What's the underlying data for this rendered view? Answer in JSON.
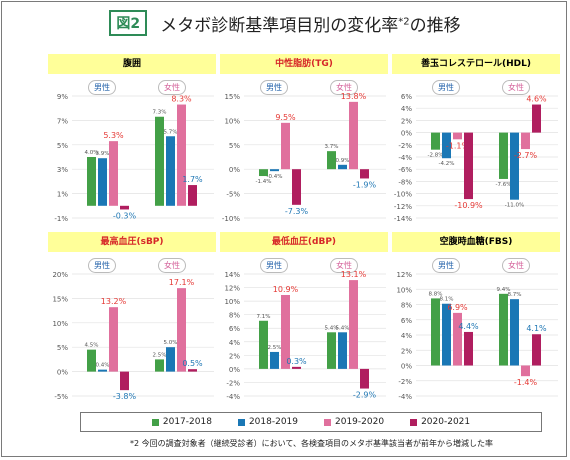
{
  "header": {
    "badge": "図2",
    "title": "メタボ診断基準項目別の変化率",
    "title_sup": "*2",
    "title_suffix": "の推移"
  },
  "labels": {
    "male": "男性",
    "female": "女性"
  },
  "colors": {
    "c2017": "#43a047",
    "c2018": "#1a77b5",
    "c2019": "#e0709d",
    "c2020": "#b01e5f",
    "highlight": "#e53935",
    "blue_label": "#1f77b4"
  },
  "chart_data": [
    {
      "type": "bar",
      "title": "腹囲",
      "ylim": [
        -1,
        9
      ],
      "ticks": [
        "9%",
        "7%",
        "5%",
        "3%",
        "1%",
        "-1%"
      ],
      "tickvals": [
        9,
        7,
        5,
        3,
        1,
        -1
      ],
      "series": [
        {
          "name": "2017-2018",
          "values": [
            4.0,
            7.3
          ]
        },
        {
          "name": "2018-2019",
          "values": [
            3.9,
            5.7
          ]
        },
        {
          "name": "2019-2020",
          "values": [
            5.3,
            8.3
          ]
        },
        {
          "name": "2020-2021",
          "values": [
            -0.3,
            1.7
          ]
        }
      ],
      "categories": [
        "男性",
        "女性"
      ],
      "labels": [
        [
          "4.0%",
          "3.9%",
          "5.3%",
          "-0.3%"
        ],
        [
          "7.3%",
          "5.7%",
          "8.3%",
          "1.7%"
        ]
      ]
    },
    {
      "type": "bar",
      "title": "中性脂肪(TG)",
      "ylim": [
        -10,
        15
      ],
      "ticks": [
        "15%",
        "10%",
        "5%",
        "0%",
        "-5%",
        "-10%"
      ],
      "tickvals": [
        15,
        10,
        5,
        0,
        -5,
        -10
      ],
      "series": [
        {
          "name": "2017-2018",
          "values": [
            -1.4,
            3.7
          ]
        },
        {
          "name": "2018-2019",
          "values": [
            -0.4,
            0.9
          ]
        },
        {
          "name": "2019-2020",
          "values": [
            9.5,
            13.8
          ]
        },
        {
          "name": "2020-2021",
          "values": [
            -7.3,
            -1.9
          ]
        }
      ],
      "categories": [
        "男性",
        "女性"
      ],
      "labels": [
        [
          "-1.4%",
          "-0.4%",
          "9.5%",
          "-7.3%"
        ],
        [
          "3.7%",
          "0.9%",
          "13.8%",
          "-1.9%"
        ]
      ]
    },
    {
      "type": "bar",
      "title": "善玉コレステロール(HDL)",
      "ylim": [
        -14,
        6
      ],
      "ticks": [
        "6%",
        "4%",
        "2%",
        "0%",
        "-2%",
        "-4%",
        "-6%",
        "-8%",
        "-10%",
        "-12%",
        "-14%"
      ],
      "tickvals": [
        6,
        4,
        2,
        0,
        -2,
        -4,
        -6,
        -8,
        -10,
        -12,
        -14
      ],
      "series": [
        {
          "name": "2017-2018",
          "values": [
            -2.8,
            -7.6
          ]
        },
        {
          "name": "2018-2019",
          "values": [
            -4.2,
            -11.0
          ]
        },
        {
          "name": "2019-2020",
          "values": [
            -1.1,
            -2.7
          ]
        },
        {
          "name": "2020-2021",
          "values": [
            -10.9,
            4.6
          ]
        }
      ],
      "categories": [
        "男性",
        "女性"
      ],
      "labels": [
        [
          "-2.8%",
          "-4.2%",
          "-1.1%",
          "-10.9%"
        ],
        [
          "-7.6%",
          "-11.0%",
          "-2.7%",
          "4.6%"
        ]
      ]
    },
    {
      "type": "bar",
      "title": "最高血圧(sBP)",
      "ylim": [
        -5,
        20
      ],
      "ticks": [
        "20%",
        "15%",
        "10%",
        "5%",
        "0%",
        "-5%"
      ],
      "tickvals": [
        20,
        15,
        10,
        5,
        0,
        -5
      ],
      "series": [
        {
          "name": "2017-2018",
          "values": [
            4.5,
            2.5
          ]
        },
        {
          "name": "2018-2019",
          "values": [
            0.4,
            5.0
          ]
        },
        {
          "name": "2019-2020",
          "values": [
            13.2,
            17.1
          ]
        },
        {
          "name": "2020-2021",
          "values": [
            -3.8,
            0.5
          ]
        }
      ],
      "categories": [
        "男性",
        "女性"
      ],
      "labels": [
        [
          "4.5%",
          "0.4%",
          "13.2%",
          "-3.8%"
        ],
        [
          "2.5%",
          "5.0%",
          "17.1%",
          "0.5%"
        ]
      ]
    },
    {
      "type": "bar",
      "title": "最低血圧(dBP)",
      "ylim": [
        -4,
        14
      ],
      "ticks": [
        "14%",
        "12%",
        "10%",
        "8%",
        "6%",
        "4%",
        "2%",
        "0%",
        "-2%",
        "-4%"
      ],
      "tickvals": [
        14,
        12,
        10,
        8,
        6,
        4,
        2,
        0,
        -2,
        -4
      ],
      "series": [
        {
          "name": "2017-2018",
          "values": [
            7.1,
            5.4
          ]
        },
        {
          "name": "2018-2019",
          "values": [
            2.5,
            5.4
          ]
        },
        {
          "name": "2019-2020",
          "values": [
            10.9,
            13.1
          ]
        },
        {
          "name": "2020-2021",
          "values": [
            0.3,
            -2.9
          ]
        }
      ],
      "categories": [
        "男性",
        "女性"
      ],
      "labels": [
        [
          "7.1%",
          "2.5%",
          "10.9%",
          "0.3%"
        ],
        [
          "5.4%",
          "5.4%",
          "13.1%",
          "-2.9%"
        ]
      ]
    },
    {
      "type": "bar",
      "title": "空腹時血糖(FBS)",
      "ylim": [
        -4,
        12
      ],
      "ticks": [
        "12%",
        "10%",
        "8%",
        "6%",
        "4%",
        "2%",
        "0%",
        "-2%",
        "-4%"
      ],
      "tickvals": [
        12,
        10,
        8,
        6,
        4,
        2,
        0,
        -2,
        -4
      ],
      "series": [
        {
          "name": "2017-2018",
          "values": [
            8.8,
            9.4
          ]
        },
        {
          "name": "2018-2019",
          "values": [
            8.1,
            8.7
          ]
        },
        {
          "name": "2019-2020",
          "values": [
            6.9,
            -1.4
          ]
        },
        {
          "name": "2020-2021",
          "values": [
            4.4,
            4.1
          ]
        }
      ],
      "categories": [
        "男性",
        "女性"
      ],
      "labels": [
        [
          "8.8%",
          "8.1%",
          "6.9%",
          "4.4%"
        ],
        [
          "9.4%",
          "8.7%",
          "-1.4%",
          "4.1%"
        ]
      ]
    }
  ],
  "legend": [
    "2017-2018",
    "2018-2019",
    "2019-2020",
    "2020-2021"
  ],
  "footnote": "*2 今回の調査対象者（継続受診者）において、各検査項目のメタボ基準該当者が前年から増減した率"
}
